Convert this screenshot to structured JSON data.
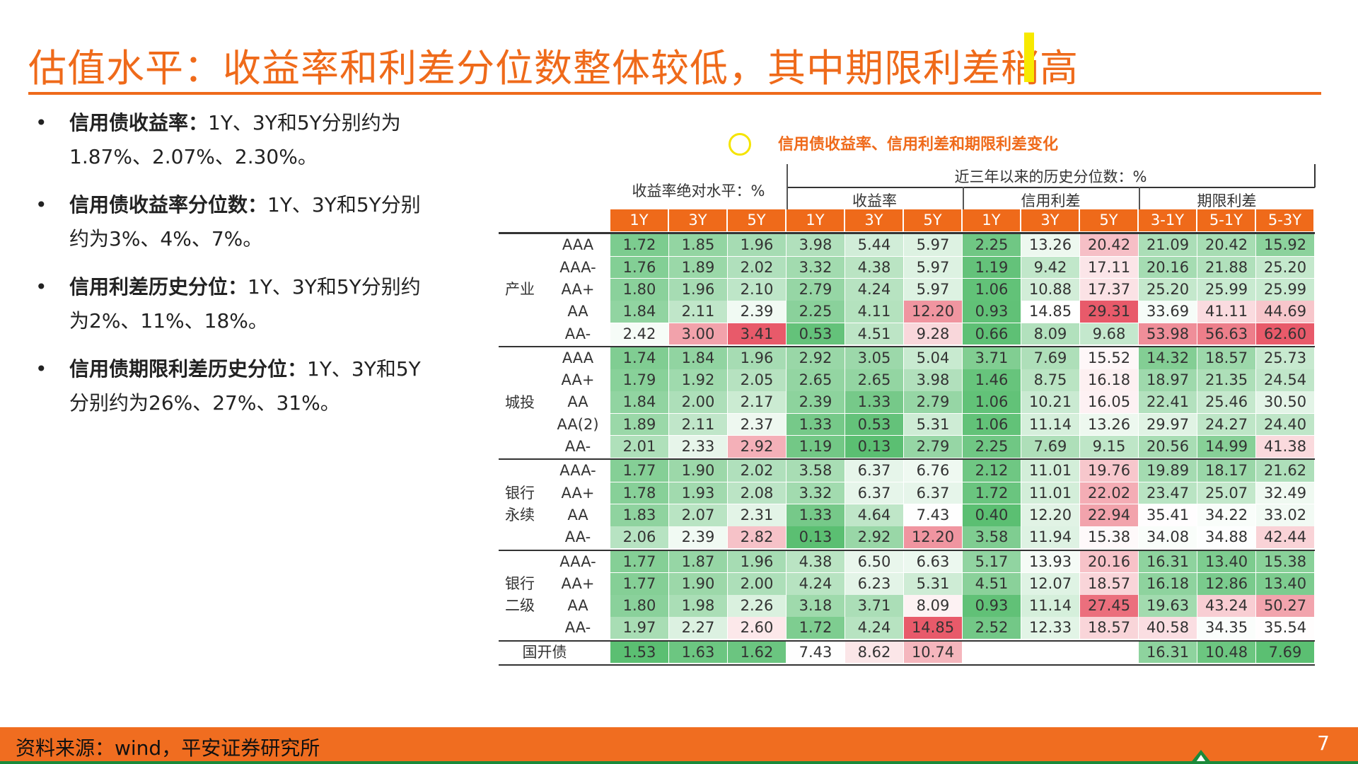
{
  "slide": {
    "title": "估值水平：收益率和利差分位数整体较低，其中期限利差稍高",
    "page_number": "7",
    "footer_source": "资料来源：wind，平安证券研究所"
  },
  "bullets": [
    {
      "bold": "信用债收益率：",
      "text": "1Y、3Y和5Y分别约为1.87%、2.07%、2.30%。"
    },
    {
      "bold": "信用债收益率分位数：",
      "text": "1Y、3Y和5Y分别约为3%、4%、7%。"
    },
    {
      "bold": "信用利差历史分位：",
      "text": "1Y、3Y和5Y分别约为2%、11%、18%。"
    },
    {
      "bold": "信用债期限利差历史分位：",
      "text": "1Y、3Y和5Y分别约为26%、27%、31%。"
    }
  ],
  "table": {
    "caption": "信用债收益率、信用利差和期限利差变化",
    "header_abs": "收益率绝对水平：%",
    "header_hist": "近三年以来的历史分位数：%",
    "group_yield": "收益率",
    "group_spread": "信用利差",
    "group_term": "期限利差",
    "columns": [
      "1Y",
      "3Y",
      "5Y",
      "1Y",
      "3Y",
      "5Y",
      "1Y",
      "3Y",
      "5Y",
      "3-1Y",
      "5-1Y",
      "5-3Y"
    ],
    "sections": [
      {
        "name": "产业",
        "rows": [
          {
            "rating": "AAA",
            "values": [
              "1.72",
              "1.85",
              "1.96",
              "3.98",
              "5.44",
              "5.97",
              "2.25",
              "13.26",
              "20.42",
              "21.09",
              "20.42",
              "15.92"
            ]
          },
          {
            "rating": "AAA-",
            "values": [
              "1.76",
              "1.89",
              "2.02",
              "3.32",
              "4.38",
              "5.97",
              "1.19",
              "9.42",
              "17.11",
              "20.16",
              "21.88",
              "25.20"
            ]
          },
          {
            "rating": "AA+",
            "values": [
              "1.80",
              "1.96",
              "2.10",
              "2.79",
              "4.24",
              "5.97",
              "1.06",
              "10.88",
              "17.37",
              "25.20",
              "25.99",
              "25.99"
            ]
          },
          {
            "rating": "AA",
            "values": [
              "1.84",
              "2.11",
              "2.39",
              "2.25",
              "4.11",
              "12.20",
              "0.93",
              "14.85",
              "29.31",
              "33.69",
              "41.11",
              "44.69"
            ]
          },
          {
            "rating": "AA-",
            "values": [
              "2.42",
              "3.00",
              "3.41",
              "0.53",
              "4.51",
              "9.28",
              "0.66",
              "8.09",
              "9.68",
              "53.98",
              "56.63",
              "62.60"
            ]
          }
        ]
      },
      {
        "name": "城投",
        "rows": [
          {
            "rating": "AAA",
            "values": [
              "1.74",
              "1.84",
              "1.96",
              "2.92",
              "3.05",
              "5.04",
              "3.71",
              "7.69",
              "15.52",
              "14.32",
              "18.57",
              "25.73"
            ]
          },
          {
            "rating": "AA+",
            "values": [
              "1.79",
              "1.92",
              "2.05",
              "2.65",
              "2.65",
              "3.98",
              "1.46",
              "8.75",
              "16.18",
              "18.97",
              "21.35",
              "24.54"
            ]
          },
          {
            "rating": "AA",
            "values": [
              "1.84",
              "2.00",
              "2.17",
              "2.39",
              "1.33",
              "2.79",
              "1.06",
              "10.21",
              "16.05",
              "22.41",
              "25.46",
              "30.50"
            ]
          },
          {
            "rating": "AA(2)",
            "values": [
              "1.89",
              "2.11",
              "2.37",
              "1.33",
              "0.53",
              "5.31",
              "1.06",
              "11.14",
              "13.26",
              "29.97",
              "24.27",
              "24.40"
            ]
          },
          {
            "rating": "AA-",
            "values": [
              "2.01",
              "2.33",
              "2.92",
              "1.19",
              "0.13",
              "2.79",
              "2.25",
              "7.69",
              "9.15",
              "20.56",
              "14.99",
              "41.38"
            ]
          }
        ]
      },
      {
        "name": "银行\n永续",
        "rows": [
          {
            "rating": "AAA-",
            "values": [
              "1.77",
              "1.90",
              "2.02",
              "3.58",
              "6.37",
              "6.76",
              "2.12",
              "11.01",
              "19.76",
              "19.89",
              "18.17",
              "21.62"
            ]
          },
          {
            "rating": "AA+",
            "values": [
              "1.78",
              "1.93",
              "2.08",
              "3.32",
              "6.37",
              "6.37",
              "1.72",
              "11.01",
              "22.02",
              "23.47",
              "25.07",
              "32.49"
            ]
          },
          {
            "rating": "AA",
            "values": [
              "1.83",
              "2.07",
              "2.31",
              "1.33",
              "4.64",
              "7.43",
              "0.40",
              "12.20",
              "22.94",
              "35.41",
              "34.22",
              "33.02"
            ]
          },
          {
            "rating": "AA-",
            "values": [
              "2.06",
              "2.39",
              "2.82",
              "0.13",
              "2.92",
              "12.20",
              "3.58",
              "11.94",
              "15.38",
              "34.08",
              "34.88",
              "42.44"
            ]
          }
        ]
      },
      {
        "name": "银行\n二级",
        "rows": [
          {
            "rating": "AAA-",
            "values": [
              "1.77",
              "1.87",
              "1.96",
              "4.38",
              "6.50",
              "6.63",
              "5.17",
              "13.93",
              "20.16",
              "16.31",
              "13.40",
              "15.38"
            ]
          },
          {
            "rating": "AA+",
            "values": [
              "1.77",
              "1.90",
              "2.00",
              "4.24",
              "6.23",
              "5.31",
              "4.51",
              "12.07",
              "18.57",
              "16.18",
              "12.86",
              "13.40"
            ]
          },
          {
            "rating": "AA",
            "values": [
              "1.80",
              "1.98",
              "2.26",
              "3.18",
              "3.71",
              "8.09",
              "0.93",
              "11.14",
              "27.45",
              "19.63",
              "43.24",
              "50.27"
            ]
          },
          {
            "rating": "AA-",
            "values": [
              "1.97",
              "2.27",
              "2.60",
              "1.72",
              "4.24",
              "14.85",
              "2.52",
              "12.33",
              "18.57",
              "40.58",
              "34.35",
              "35.54"
            ]
          }
        ]
      },
      {
        "name": "国开债",
        "rows": [
          {
            "rating": "",
            "values": [
              "1.53",
              "1.63",
              "1.62",
              "7.43",
              "8.62",
              "10.74",
              "",
              "",
              "",
              "16.31",
              "10.48",
              "7.69"
            ]
          }
        ]
      }
    ]
  },
  "colors": {
    "accent": "#ef6a1a",
    "green": "#5bbf72",
    "red": "#e85a6a",
    "neutral": "#ffffff"
  }
}
